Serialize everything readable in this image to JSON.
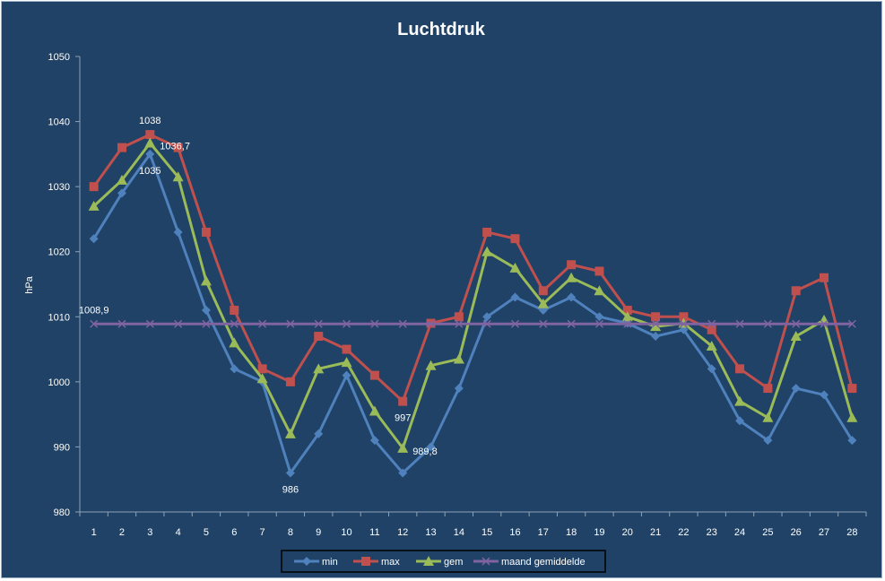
{
  "chart_data": {
    "type": "line",
    "title": "Luchtdruk",
    "xlabel": "",
    "ylabel": "hPa",
    "categories": [
      "1",
      "2",
      "3",
      "4",
      "5",
      "6",
      "7",
      "8",
      "9",
      "10",
      "11",
      "12",
      "13",
      "14",
      "15",
      "16",
      "17",
      "18",
      "19",
      "20",
      "21",
      "22",
      "23",
      "24",
      "25",
      "26",
      "27",
      "28"
    ],
    "ylim": [
      980,
      1050
    ],
    "yticks": [
      "980",
      "990",
      "1000",
      "1010",
      "1020",
      "1030",
      "1040",
      "1050"
    ],
    "grid": false,
    "legend_position": "bottom",
    "series": [
      {
        "name": "min",
        "color": "#4f81bd",
        "marker": "diamond",
        "values": [
          1022,
          1029,
          1035,
          1023,
          1011,
          1002,
          1000,
          986,
          992,
          1001,
          991,
          986,
          990,
          999,
          1010,
          1013,
          1011,
          1013,
          1010,
          1009,
          1007,
          1008,
          1002,
          994,
          991,
          999,
          998,
          991
        ]
      },
      {
        "name": "max",
        "color": "#c0504d",
        "marker": "square",
        "values": [
          1030,
          1036,
          1038,
          1036,
          1023,
          1011,
          1002,
          1000,
          1007,
          1005,
          1001,
          997,
          1009,
          1010,
          1023,
          1022,
          1014,
          1018,
          1017,
          1011,
          1010,
          1010,
          1008,
          1002,
          999,
          1014,
          1016,
          999
        ]
      },
      {
        "name": "gem",
        "color": "#9bbb59",
        "marker": "triangle",
        "values": [
          1027,
          1031,
          1036.7,
          1031.5,
          1015.5,
          1006,
          1000.5,
          992,
          1002,
          1003,
          995.5,
          989.8,
          1002.5,
          1003.5,
          1020,
          1017.5,
          1012,
          1016,
          1014,
          1010,
          1008.5,
          1009,
          1005.5,
          997,
          994.5,
          1007,
          1009.5,
          994.5
        ]
      },
      {
        "name": "maand gemiddelde",
        "color": "#8064a2",
        "marker": "x",
        "values": [
          1008.9,
          1008.9,
          1008.9,
          1008.9,
          1008.9,
          1008.9,
          1008.9,
          1008.9,
          1008.9,
          1008.9,
          1008.9,
          1008.9,
          1008.9,
          1008.9,
          1008.9,
          1008.9,
          1008.9,
          1008.9,
          1008.9,
          1008.9,
          1008.9,
          1008.9,
          1008.9,
          1008.9,
          1008.9,
          1008.9,
          1008.9,
          1008.9
        ]
      }
    ],
    "data_labels": [
      {
        "series": "max",
        "index": 2,
        "text": "1038",
        "pos": "above"
      },
      {
        "series": "gem",
        "index": 2,
        "text": "1036,7",
        "pos": "right"
      },
      {
        "series": "min",
        "index": 2,
        "text": "1035",
        "pos": "below"
      },
      {
        "series": "maand gemiddelde",
        "index": 0,
        "text": "1008,9",
        "pos": "above"
      },
      {
        "series": "min",
        "index": 7,
        "text": "986",
        "pos": "below"
      },
      {
        "series": "max",
        "index": 11,
        "text": "997",
        "pos": "below"
      },
      {
        "series": "gem",
        "index": 11,
        "text": "989,8",
        "pos": "right"
      }
    ]
  }
}
